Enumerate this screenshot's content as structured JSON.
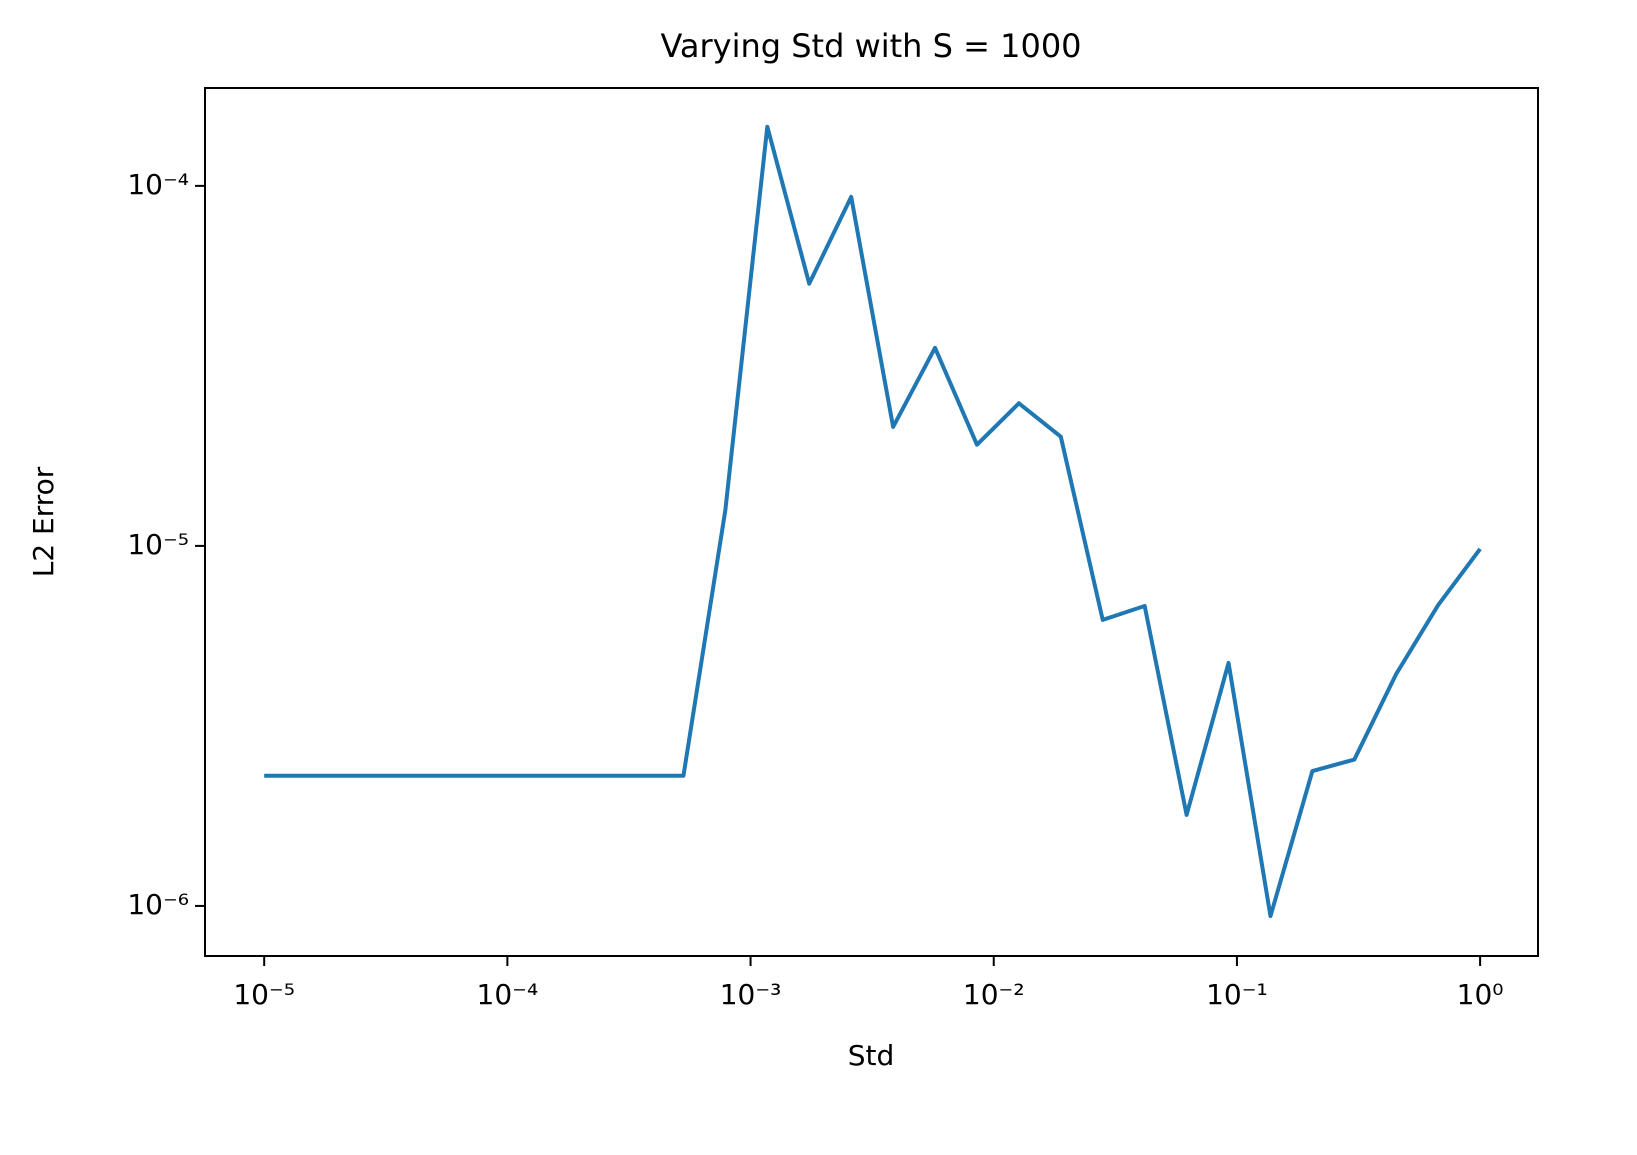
{
  "chart_data": {
    "type": "line",
    "title": "Varying Std with S = 1000",
    "xlabel": "Std",
    "ylabel": "L2 Error",
    "xscale": "log",
    "yscale": "log",
    "x": [
      1e-05,
      1.487e-05,
      2.212e-05,
      3.29e-05,
      4.894e-05,
      7.279e-05,
      0.0001083,
      0.000161,
      0.0002395,
      0.0003562,
      0.0005298,
      0.000788,
      0.001172,
      0.001743,
      0.002593,
      0.003857,
      0.005736,
      0.008532,
      0.01269,
      0.01887,
      0.02807,
      0.04175,
      0.0621,
      0.09237,
      0.1374,
      0.2043,
      0.3039,
      0.452,
      0.6723,
      1.0
    ],
    "series": [
      {
        "color": "#1f77b4",
        "values": [
          2.3e-06,
          2.3e-06,
          2.3e-06,
          2.3e-06,
          2.3e-06,
          2.3e-06,
          2.3e-06,
          2.3e-06,
          2.3e-06,
          2.3e-06,
          2.3e-06,
          1.26e-05,
          0.000146,
          5.35e-05,
          9.32e-05,
          2.14e-05,
          3.55e-05,
          1.91e-05,
          2.49e-05,
          2.01e-05,
          6.23e-06,
          6.81e-06,
          1.79e-06,
          4.73e-06,
          9.37e-07,
          2.37e-06,
          2.55e-06,
          4.41e-06,
          6.85e-06,
          9.81e-06
        ]
      }
    ],
    "xlim": [
      5.71e-06,
      1.73
    ],
    "ylim": [
      7.26e-07,
      0.000187
    ],
    "xticks": [
      {
        "value": 1e-05,
        "label": "10⁻⁵"
      },
      {
        "value": 0.0001,
        "label": "10⁻⁴"
      },
      {
        "value": 0.001,
        "label": "10⁻³"
      },
      {
        "value": 0.01,
        "label": "10⁻²"
      },
      {
        "value": 0.1,
        "label": "10⁻¹"
      },
      {
        "value": 1,
        "label": "10⁰"
      }
    ],
    "yticks": [
      {
        "value": 1e-06,
        "label": "10⁻⁶"
      },
      {
        "value": 1e-05,
        "label": "10⁻⁵"
      },
      {
        "value": 0.0001,
        "label": "10⁻⁴"
      }
    ]
  }
}
